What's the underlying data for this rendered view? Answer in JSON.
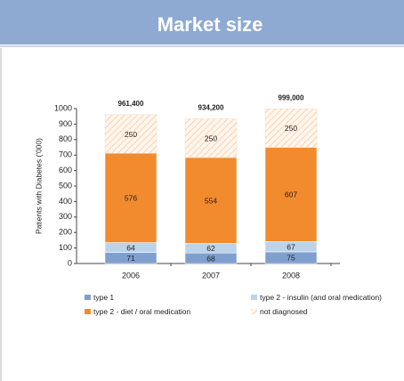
{
  "chart_data": {
    "type": "stacked-bar",
    "title": "Market size",
    "ylabel": "Patients with Diabetes ('000)",
    "categories": [
      "2006",
      "2007",
      "2008"
    ],
    "series": [
      {
        "name": "type 1",
        "color": "#7f9fcf",
        "values": [
          71,
          68,
          75
        ]
      },
      {
        "name": "type 2 - insulin (and oral medication)",
        "color": "#bcd3ea",
        "values": [
          64,
          62,
          67
        ]
      },
      {
        "name": "type 2 - diet / oral medication",
        "color": "#f28a2e",
        "values": [
          576,
          554,
          607
        ]
      },
      {
        "name": "not diagnosed",
        "color": "#f6c9a0",
        "pattern": "hatch",
        "values": [
          250,
          250,
          250
        ]
      }
    ],
    "totals": {
      "values": [
        961.4,
        934.2,
        999
      ],
      "value_labels": [
        "961,400",
        "934,200",
        "999,000"
      ]
    },
    "ylim": [
      0,
      1000
    ],
    "yticks": [
      0,
      100,
      200,
      300,
      400,
      500,
      600,
      700,
      800,
      900,
      1000
    ],
    "grid": false
  }
}
